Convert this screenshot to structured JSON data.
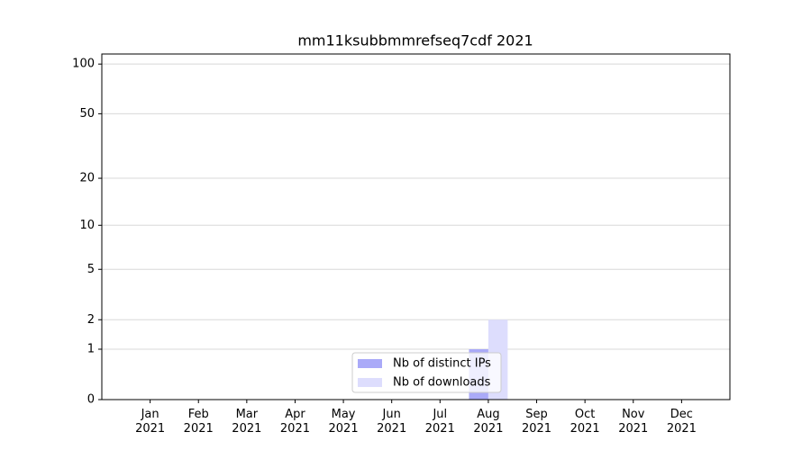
{
  "chart_data": {
    "type": "bar",
    "title": "mm11ksubbmmrefseq7cdf 2021",
    "categories": [
      "Jan\n2021",
      "Feb\n2021",
      "Mar\n2021",
      "Apr\n2021",
      "May\n2021",
      "Jun\n2021",
      "Jul\n2021",
      "Aug\n2021",
      "Sep\n2021",
      "Oct\n2021",
      "Nov\n2021",
      "Dec\n2021"
    ],
    "series": [
      {
        "name": "Nb of distinct IPs",
        "color": "#aaaaf8",
        "values": [
          0,
          0,
          0,
          0,
          0,
          0,
          0,
          1,
          0,
          0,
          0,
          0
        ]
      },
      {
        "name": "Nb of downloads",
        "color": "#ddddfd",
        "values": [
          0,
          0,
          0,
          0,
          0,
          0,
          0,
          2,
          0,
          0,
          0,
          0
        ]
      }
    ],
    "yscale": "log1p",
    "ylim": [
      0,
      115
    ],
    "yticks": [
      0,
      1,
      2,
      5,
      10,
      20,
      50,
      100
    ],
    "grid": true,
    "legend": "lower center"
  }
}
